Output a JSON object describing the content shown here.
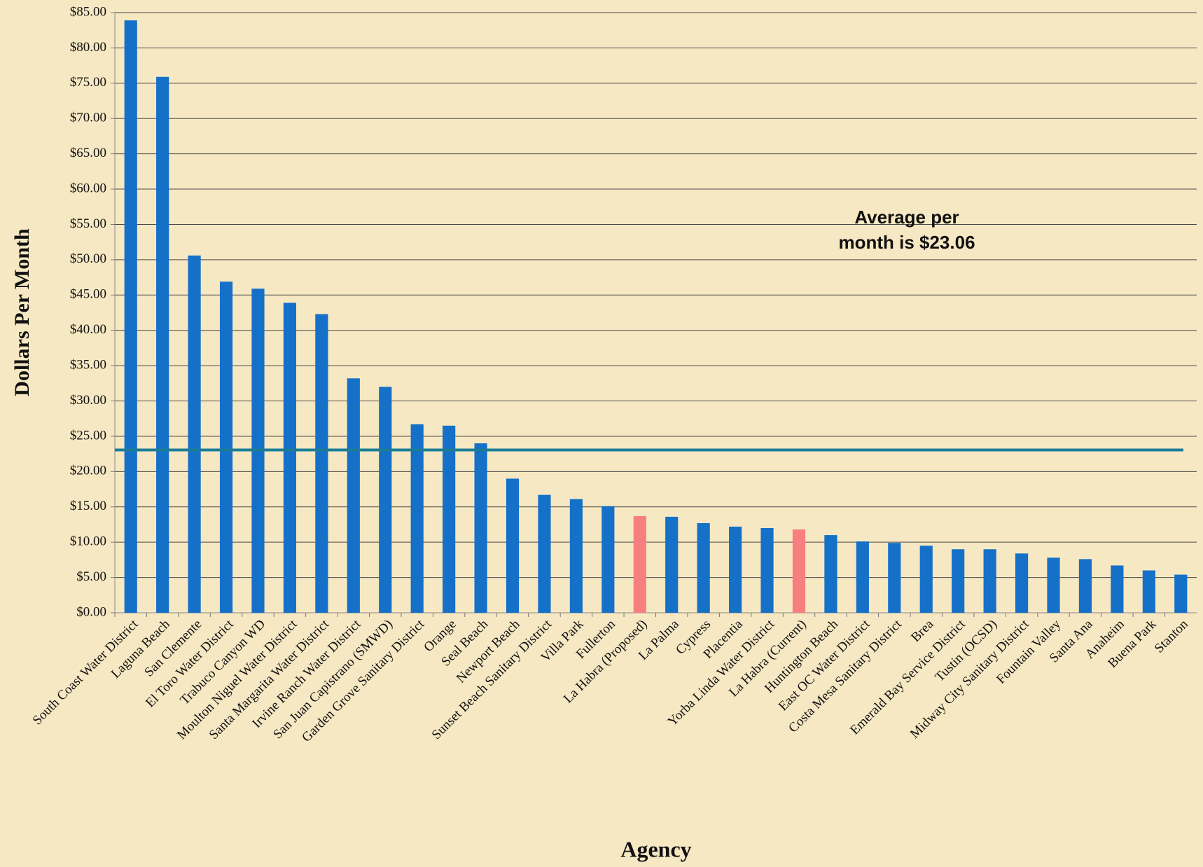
{
  "chart_data": {
    "type": "bar",
    "categories": [
      "South Coast Water District",
      "Laguna Beach",
      "San Clemente",
      "El Toro Water District",
      "Trabuco Canyon WD",
      "Moulton Niguel Water District",
      "Santa Margarita Water District",
      "Irvine Ranch Water District",
      "San Juan Capistrano (SMWD)",
      "Garden Grove Sanitary District",
      "Orange",
      "Seal Beach",
      "Newport Beach",
      "Sunset Beach Sanitary District",
      "Villa Park",
      "Fullerton",
      "La Habra (Proposed)",
      "La Palma",
      "Cypress",
      "Placentia",
      "Yorba Linda Water District",
      "La Habra (Current)",
      "Huntington Beach",
      "East OC Water District",
      "Costa Mesa Sanitary District",
      "Brea",
      "Emerald Bay Service District",
      "Tustin (OCSD)",
      "Midway City Sanitary District",
      "Fountain Valley",
      "Santa Ana",
      "Anaheim",
      "Buena Park",
      "Stanton"
    ],
    "values": [
      83.9,
      75.9,
      50.6,
      46.9,
      45.9,
      43.9,
      42.3,
      33.2,
      32.0,
      26.7,
      26.5,
      24.0,
      19.0,
      16.7,
      16.1,
      15.1,
      13.7,
      13.6,
      12.7,
      12.2,
      12.0,
      11.8,
      11.0,
      10.1,
      9.9,
      9.5,
      9.0,
      9.0,
      8.4,
      7.8,
      7.6,
      6.7,
      6.0,
      5.4
    ],
    "colors": [
      "#1570c8",
      "#1570c8",
      "#1570c8",
      "#1570c8",
      "#1570c8",
      "#1570c8",
      "#1570c8",
      "#1570c8",
      "#1570c8",
      "#1570c8",
      "#1570c8",
      "#1570c8",
      "#1570c8",
      "#1570c8",
      "#1570c8",
      "#1570c8",
      "#f77f80",
      "#1570c8",
      "#1570c8",
      "#1570c8",
      "#1570c8",
      "#f77f80",
      "#1570c8",
      "#1570c8",
      "#1570c8",
      "#1570c8",
      "#1570c8",
      "#1570c8",
      "#1570c8",
      "#1570c8",
      "#1570c8",
      "#1570c8",
      "#1570c8",
      "#1570c8"
    ],
    "average": 23.06,
    "average_color": "#1b7c98",
    "annotation_lines": [
      "Average per",
      "month is $23.06"
    ],
    "x_label": "Agency",
    "y_label": "Dollars Per Month",
    "ylim": [
      0,
      85
    ],
    "yticks": [
      {
        "value": 0,
        "label": "$0.00"
      },
      {
        "value": 5,
        "label": "$5.00"
      },
      {
        "value": 10,
        "label": "$10.00"
      },
      {
        "value": 15,
        "label": "$15.00"
      },
      {
        "value": 20,
        "label": "$20.00"
      },
      {
        "value": 25,
        "label": "$25.00"
      },
      {
        "value": 30,
        "label": "$30.00"
      },
      {
        "value": 35,
        "label": "$35.00"
      },
      {
        "value": 40,
        "label": "$40.00"
      },
      {
        "value": 45,
        "label": "$45.00"
      },
      {
        "value": 50,
        "label": "$50.00"
      },
      {
        "value": 55,
        "label": "$55.00"
      },
      {
        "value": 60,
        "label": "$60.00"
      },
      {
        "value": 65,
        "label": "$65.00"
      },
      {
        "value": 70,
        "label": "$70.00"
      },
      {
        "value": 75,
        "label": "$75.00"
      },
      {
        "value": 80,
        "label": "$80.00"
      },
      {
        "value": 85,
        "label": "$85.00"
      }
    ],
    "grid": true
  }
}
